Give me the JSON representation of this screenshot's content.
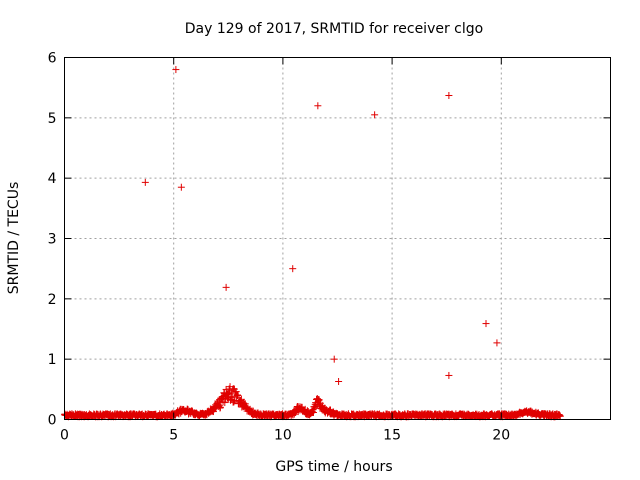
{
  "chart_data": {
    "type": "scatter",
    "title": "Day 129 of 2017, SRMTID for receiver clgo",
    "xlabel": "GPS time / hours",
    "ylabel": "SRMTID / TECUs",
    "xlim": [
      0,
      25
    ],
    "ylim": [
      0,
      6
    ],
    "xticks": [
      0,
      5,
      10,
      15,
      20
    ],
    "yticks": [
      0,
      1,
      2,
      3,
      4,
      5,
      6
    ],
    "grid": true,
    "marker": "+",
    "color": "#e00000",
    "outliers": {
      "x": [
        3.7,
        5.1,
        5.35,
        7.4,
        10.45,
        11.6,
        12.35,
        12.55,
        14.2,
        17.6,
        17.6,
        19.3,
        19.8
      ],
      "y": [
        3.93,
        5.8,
        3.85,
        2.19,
        2.5,
        5.2,
        1.0,
        0.63,
        5.05,
        5.37,
        0.73,
        1.59,
        1.27
      ]
    },
    "dense_series": {
      "start": 0.0,
      "end": 22.7,
      "interval_hours": 0.02,
      "baseline_tecu": 0.07,
      "elevated_periods": [
        {
          "center": 7.6,
          "width": 0.7,
          "peak": 0.33
        },
        {
          "center": 5.5,
          "width": 0.4,
          "peak": 0.08
        },
        {
          "center": 10.8,
          "width": 0.3,
          "peak": 0.12
        },
        {
          "center": 11.6,
          "width": 0.2,
          "peak": 0.2
        },
        {
          "center": 12.0,
          "width": 0.4,
          "peak": 0.06
        },
        {
          "center": 21.2,
          "width": 0.5,
          "peak": 0.05
        }
      ]
    }
  }
}
